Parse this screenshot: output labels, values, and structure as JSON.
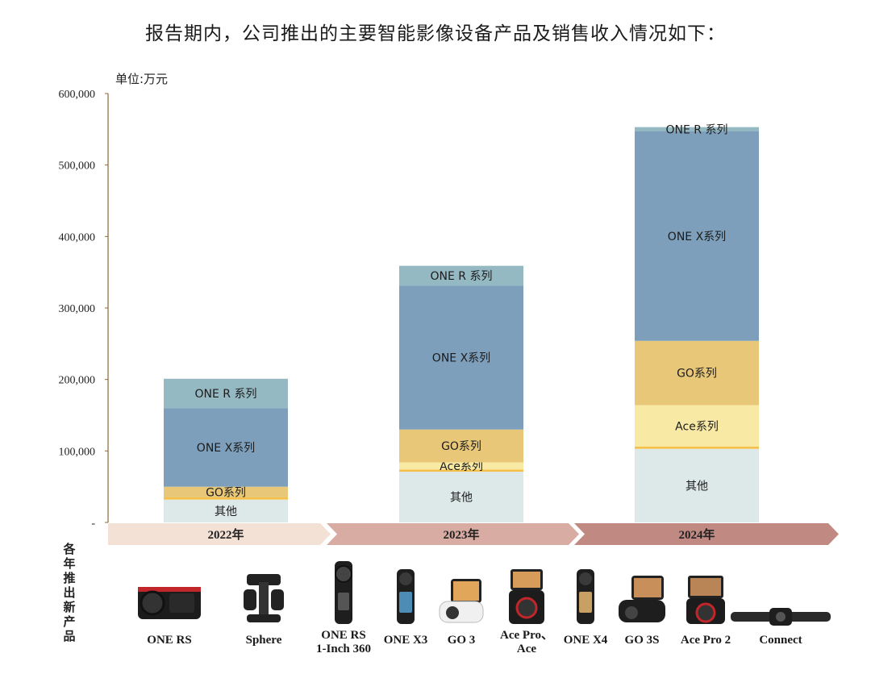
{
  "page": {
    "title": "报告期内，公司推出的主要智能影像设备产品及销售收入情况如下：",
    "unit": "单位:万元",
    "side_label": "各年推出新产品"
  },
  "chart_data": {
    "type": "bar",
    "stacked": true,
    "categories": [
      "2022年",
      "2023年",
      "2024年"
    ],
    "ylim": [
      0,
      600000
    ],
    "yticks": [
      "-",
      "100,000",
      "200,000",
      "300,000",
      "400,000",
      "500,000",
      "600,000"
    ],
    "grid": false,
    "series": [
      {
        "name": "其他",
        "color": "#dde8e8",
        "values": [
          32000,
          71000,
          103000
        ]
      },
      {
        "name": "",
        "color": "#f5c04a",
        "values": [
          3000,
          3000,
          3000
        ]
      },
      {
        "name": "Ace系列",
        "color": "#f8e9a4",
        "values": [
          0,
          10000,
          58000
        ]
      },
      {
        "name": "GO系列",
        "color": "#e8c878",
        "values": [
          15000,
          46000,
          90000
        ]
      },
      {
        "name": "ONE X系列",
        "color": "#7d9fbb",
        "values": [
          110000,
          201000,
          293000
        ]
      },
      {
        "name": "ONE R 系列",
        "color": "#95b9c3",
        "values": [
          41000,
          28000,
          6000
        ]
      }
    ]
  },
  "products": [
    {
      "name": "ONE RS",
      "icon": "one-rs-camera-icon"
    },
    {
      "name": "Sphere",
      "icon": "sphere-camera-icon"
    },
    {
      "name": "ONE RS 1-Inch 360",
      "icon": "one-rs-1inch-camera-icon"
    },
    {
      "name": "ONE X3",
      "icon": "one-x3-camera-icon"
    },
    {
      "name": "GO 3",
      "icon": "go3-camera-icon"
    },
    {
      "name": "Ace Pro、Ace",
      "icon": "ace-pro-camera-icon"
    },
    {
      "name": "ONE X4",
      "icon": "one-x4-camera-icon"
    },
    {
      "name": "GO 3S",
      "icon": "go3s-camera-icon"
    },
    {
      "name": "Ace Pro 2",
      "icon": "ace-pro2-camera-icon"
    },
    {
      "name": "Connect",
      "icon": "connect-webcam-icon"
    }
  ]
}
